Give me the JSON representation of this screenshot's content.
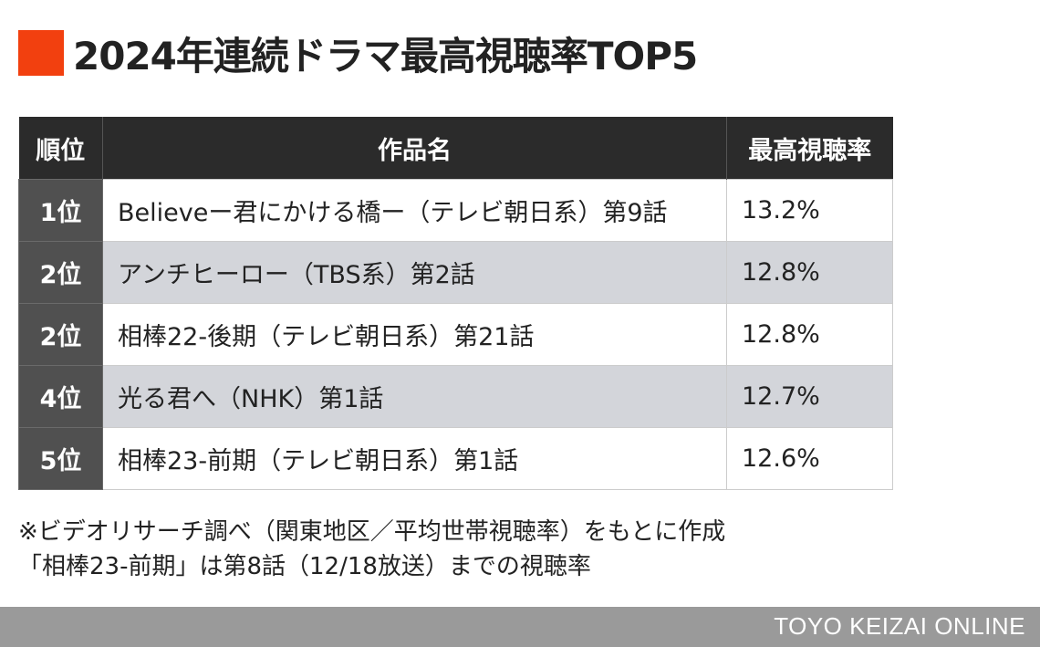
{
  "title": "2024年連続ドラマ最高視聴率TOP5",
  "accent_color": "#f2400f",
  "chart_data": {
    "type": "table",
    "title": "2024年連続ドラマ最高視聴率TOP5",
    "columns": [
      "順位",
      "作品名",
      "最高視聴率"
    ],
    "rows": [
      {
        "rank": "1位",
        "title": "Believeー君にかける橋ー（テレビ朝日系）第9話",
        "rate": "13.2%",
        "value": 13.2
      },
      {
        "rank": "2位",
        "title": "アンチヒーロー（TBS系）第2話",
        "rate": "12.8%",
        "value": 12.8
      },
      {
        "rank": "2位",
        "title": "相棒22-後期（テレビ朝日系）第21話",
        "rate": "12.8%",
        "value": 12.8
      },
      {
        "rank": "4位",
        "title": "光る君へ（NHK）第1話",
        "rate": "12.7%",
        "value": 12.7
      },
      {
        "rank": "5位",
        "title": "相棒23-前期（テレビ朝日系）第1話",
        "rate": "12.6%",
        "value": 12.6
      }
    ]
  },
  "notes": [
    "※ビデオリサーチ調べ（関東地区／平均世帯視聴率）をもとに作成",
    "「相棒23-前期」は第8話（12/18放送）までの視聴率"
  ],
  "footer": {
    "brand": "TOYO KEIZAI ONLINE"
  }
}
